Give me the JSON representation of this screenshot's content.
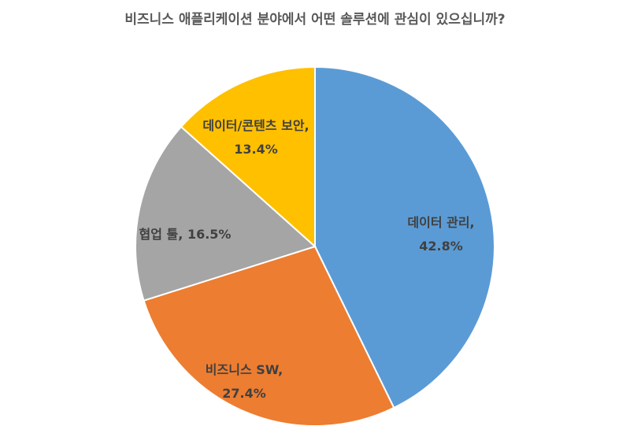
{
  "chart_data": {
    "type": "pie",
    "title": "비즈니스 애플리케이션 분야에서 어떤 솔루션에 관심이 있으십니까?",
    "categories": [
      "데이터 관리",
      "비즈니스 SW",
      "협업 툴",
      "데이터/콘텐츠 보안"
    ],
    "values": [
      42.8,
      27.4,
      16.5,
      13.4
    ],
    "value_labels": [
      "42.8%",
      "27.4%",
      "16.5%",
      "13.4%"
    ],
    "label_separator": ",",
    "colors": [
      "#5b9bd5",
      "#ed7d31",
      "#a5a5a5",
      "#ffc000"
    ]
  }
}
